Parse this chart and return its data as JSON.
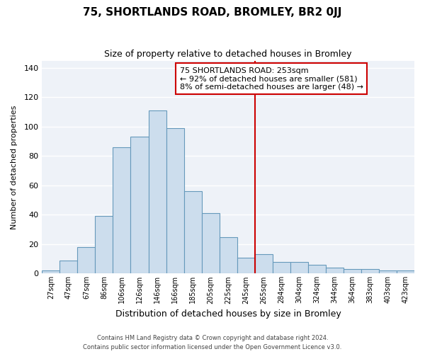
{
  "title": "75, SHORTLANDS ROAD, BROMLEY, BR2 0JJ",
  "subtitle": "Size of property relative to detached houses in Bromley",
  "xlabel": "Distribution of detached houses by size in Bromley",
  "ylabel": "Number of detached properties",
  "categories": [
    "27sqm",
    "47sqm",
    "67sqm",
    "86sqm",
    "106sqm",
    "126sqm",
    "146sqm",
    "166sqm",
    "185sqm",
    "205sqm",
    "225sqm",
    "245sqm",
    "265sqm",
    "284sqm",
    "304sqm",
    "324sqm",
    "344sqm",
    "364sqm",
    "383sqm",
    "403sqm",
    "423sqm"
  ],
  "values": [
    2,
    9,
    18,
    39,
    86,
    93,
    111,
    99,
    56,
    41,
    25,
    11,
    13,
    8,
    8,
    6,
    4,
    3,
    3,
    2,
    2
  ],
  "bar_color": "#ccdded",
  "bar_edge_color": "#6699bb",
  "background_color": "#eef2f8",
  "grid_color": "#ffffff",
  "vline_color": "#cc0000",
  "vline_pos": 11.5,
  "annotation_text_line1": "75 SHORTLANDS ROAD: 253sqm",
  "annotation_text_line2": "← 92% of detached houses are smaller (581)",
  "annotation_text_line3": "8% of semi-detached houses are larger (48) →",
  "footer_line1": "Contains HM Land Registry data © Crown copyright and database right 2024.",
  "footer_line2": "Contains public sector information licensed under the Open Government Licence v3.0.",
  "ylim": [
    0,
    145
  ],
  "yticks": [
    0,
    20,
    40,
    60,
    80,
    100,
    120,
    140
  ]
}
